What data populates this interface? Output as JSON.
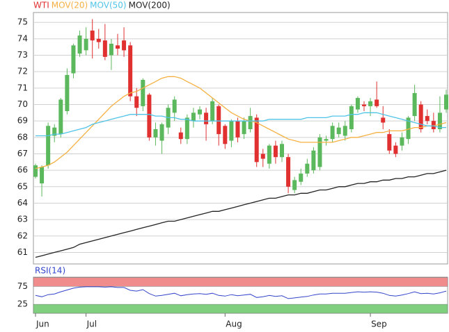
{
  "chart_data": [
    {
      "type": "candlestick",
      "name": "WTI",
      "legend_color": "#e03030",
      "up_color": "#5cb85c",
      "down_color": "#e03030",
      "categories": [
        "Jun",
        null,
        null,
        null,
        null,
        null,
        null,
        null,
        "Jul",
        null,
        null,
        null,
        null,
        null,
        null,
        null,
        null,
        null,
        null,
        null,
        null,
        null,
        null,
        null,
        null,
        null,
        null,
        null,
        null,
        null,
        "Aug",
        null,
        null,
        null,
        null,
        null,
        null,
        null,
        null,
        null,
        null,
        null,
        null,
        null,
        null,
        null,
        null,
        null,
        null,
        null,
        null,
        null,
        null,
        "Sep",
        null,
        null,
        null,
        null,
        null,
        null,
        null,
        null,
        null,
        null,
        null,
        null
      ],
      "open": [
        65.6,
        65.2,
        66.3,
        68.1,
        68.2,
        69.6,
        71.9,
        73.1,
        73.3,
        74.5,
        74.0,
        73.9,
        73.0,
        73.6,
        73.9,
        73.6,
        70.5,
        69.9,
        70.6,
        68.0,
        67.8,
        68.6,
        69.5,
        68.3,
        67.9,
        69.0,
        69.4,
        69.5,
        69.0,
        69.9,
        68.7,
        67.8,
        69.0,
        68.2,
        68.5,
        69.2,
        67.0,
        66.4,
        67.5,
        66.8,
        66.8,
        64.8,
        65.3,
        65.8,
        66.0,
        66.2,
        67.8,
        67.9,
        68.2,
        68.1,
        68.5,
        69.7,
        70.0,
        69.9,
        70.3,
        69.2,
        68.2,
        67.5,
        67.5,
        67.9,
        69.3,
        70.0,
        69.3,
        69.0,
        68.5,
        69.7
      ],
      "high": [
        66.4,
        66.3,
        68.9,
        68.8,
        70.4,
        72.2,
        73.7,
        74.5,
        74.7,
        75.2,
        74.6,
        74.9,
        74.0,
        74.3,
        74.7,
        73.8,
        71.0,
        71.6,
        70.7,
        68.9,
        68.9,
        70.0,
        70.5,
        68.6,
        69.4,
        69.8,
        69.9,
        69.8,
        70.4,
        70.0,
        68.8,
        69.1,
        69.2,
        69.2,
        69.8,
        69.4,
        67.3,
        67.6,
        67.8,
        67.8,
        67.0,
        65.6,
        66.1,
        66.7,
        67.4,
        68.2,
        68.1,
        68.9,
        68.9,
        69.0,
        70.0,
        70.5,
        70.2,
        70.4,
        71.4,
        69.9,
        68.5,
        67.7,
        68.3,
        69.3,
        71.2,
        70.2,
        69.7,
        69.5,
        70.5,
        70.9
      ],
      "low": [
        65.5,
        64.4,
        66.1,
        67.7,
        68.0,
        69.4,
        71.6,
        72.9,
        73.0,
        72.8,
        73.4,
        72.7,
        72.1,
        73.0,
        72.9,
        70.2,
        69.3,
        69.6,
        67.8,
        67.5,
        67.0,
        68.2,
        69.0,
        67.6,
        67.6,
        68.6,
        69.1,
        67.8,
        68.8,
        67.5,
        67.3,
        67.4,
        67.7,
        67.9,
        68.3,
        66.2,
        66.2,
        66.1,
        66.4,
        66.5,
        64.6,
        64.6,
        65.1,
        65.6,
        65.8,
        66.0,
        67.5,
        67.7,
        68.0,
        67.8,
        68.3,
        69.5,
        69.6,
        69.3,
        69.8,
        68.5,
        67.0,
        66.8,
        67.2,
        67.6,
        69.0,
        68.3,
        68.8,
        68.3,
        68.3,
        69.5
      ],
      "close": [
        66.3,
        66.2,
        68.7,
        68.6,
        70.3,
        71.8,
        73.6,
        74.2,
        74.0,
        73.9,
        73.8,
        72.9,
        73.7,
        73.4,
        73.3,
        70.5,
        69.8,
        71.5,
        68.0,
        68.5,
        68.8,
        69.8,
        70.3,
        67.9,
        69.2,
        69.5,
        69.7,
        68.8,
        70.2,
        68.2,
        67.6,
        69.0,
        68.0,
        69.0,
        69.3,
        66.5,
        66.7,
        67.5,
        66.8,
        67.6,
        65.0,
        65.4,
        65.8,
        66.4,
        67.2,
        68.0,
        67.9,
        68.7,
        68.6,
        68.7,
        69.9,
        70.4,
        69.9,
        70.2,
        69.9,
        68.9,
        67.2,
        67.0,
        68.0,
        69.2,
        70.7,
        68.5,
        69.0,
        68.5,
        69.5,
        70.6
      ],
      "lines": [
        {
          "name": "MOV(20)",
          "color": "#f5b041",
          "values": [
            66.1,
            66.2,
            66.3,
            66.5,
            66.8,
            67.1,
            67.5,
            67.9,
            68.3,
            68.7,
            69.1,
            69.5,
            69.9,
            70.2,
            70.5,
            70.7,
            70.8,
            71.0,
            71.2,
            71.4,
            71.6,
            71.7,
            71.7,
            71.6,
            71.4,
            71.2,
            71.0,
            70.7,
            70.4,
            70.1,
            69.8,
            69.5,
            69.3,
            69.1,
            69.0,
            68.9,
            68.7,
            68.5,
            68.3,
            68.1,
            67.9,
            67.8,
            67.7,
            67.7,
            67.7,
            67.7,
            67.7,
            67.7,
            67.8,
            67.9,
            68.0,
            68.0,
            68.1,
            68.2,
            68.3,
            68.3,
            68.4,
            68.4,
            68.4,
            68.5,
            68.6,
            68.6,
            68.7,
            68.7,
            68.8,
            68.9
          ]
        },
        {
          "name": "MOV(50)",
          "color": "#4fc3e8",
          "values": [
            68.1,
            68.1,
            68.1,
            68.2,
            68.2,
            68.3,
            68.4,
            68.5,
            68.6,
            68.8,
            68.9,
            69.0,
            69.1,
            69.2,
            69.3,
            69.4,
            69.4,
            69.4,
            69.4,
            69.3,
            69.3,
            69.2,
            69.2,
            69.1,
            69.1,
            69.0,
            69.0,
            69.0,
            69.0,
            69.0,
            69.0,
            69.0,
            69.0,
            69.0,
            69.0,
            69.0,
            69.0,
            69.1,
            69.1,
            69.1,
            69.1,
            69.1,
            69.1,
            69.2,
            69.2,
            69.2,
            69.2,
            69.3,
            69.3,
            69.3,
            69.4,
            69.4,
            69.5,
            69.5,
            69.5,
            69.4,
            69.3,
            69.2,
            69.1,
            69.0,
            68.9,
            68.8,
            68.7,
            68.7,
            68.6,
            68.6
          ]
        },
        {
          "name": "MOV(200)",
          "color": "#222222",
          "values": [
            60.7,
            60.8,
            60.9,
            61.0,
            61.1,
            61.2,
            61.3,
            61.5,
            61.6,
            61.7,
            61.8,
            61.9,
            62.0,
            62.1,
            62.2,
            62.3,
            62.4,
            62.5,
            62.6,
            62.7,
            62.8,
            62.9,
            62.9,
            63.0,
            63.1,
            63.2,
            63.3,
            63.4,
            63.5,
            63.5,
            63.6,
            63.7,
            63.8,
            63.9,
            64.0,
            64.1,
            64.2,
            64.3,
            64.3,
            64.4,
            64.5,
            64.5,
            64.6,
            64.6,
            64.7,
            64.8,
            64.8,
            64.9,
            65.0,
            65.0,
            65.1,
            65.2,
            65.2,
            65.3,
            65.3,
            65.4,
            65.4,
            65.5,
            65.5,
            65.6,
            65.6,
            65.7,
            65.8,
            65.8,
            65.9,
            66.0
          ]
        }
      ],
      "ylim": [
        60.3,
        75.6
      ],
      "yticks": [
        61,
        62,
        63,
        64,
        65,
        66,
        67,
        68,
        69,
        70,
        71,
        72,
        73,
        74,
        75
      ],
      "grid": true
    },
    {
      "type": "line",
      "title": "RSI(14)",
      "color": "#3344cc",
      "values": [
        50,
        46,
        52,
        54,
        60,
        65,
        70,
        73,
        74,
        74,
        74,
        73,
        74,
        72,
        72,
        64,
        62,
        66,
        55,
        48,
        50,
        53,
        56,
        49,
        52,
        54,
        55,
        53,
        56,
        50,
        48,
        52,
        49,
        51,
        53,
        44,
        46,
        50,
        47,
        49,
        41,
        43,
        45,
        47,
        51,
        54,
        54,
        56,
        56,
        56,
        58,
        60,
        59,
        60,
        59,
        56,
        50,
        48,
        51,
        55,
        60,
        55,
        56,
        54,
        57,
        62
      ],
      "ylim": [
        0,
        100
      ],
      "yticks": [
        25,
        75
      ],
      "bands": [
        {
          "from": 75,
          "to": 100,
          "color": "#f08c8c"
        },
        {
          "from": 0,
          "to": 25,
          "color": "#7fcf7f"
        }
      ]
    }
  ]
}
